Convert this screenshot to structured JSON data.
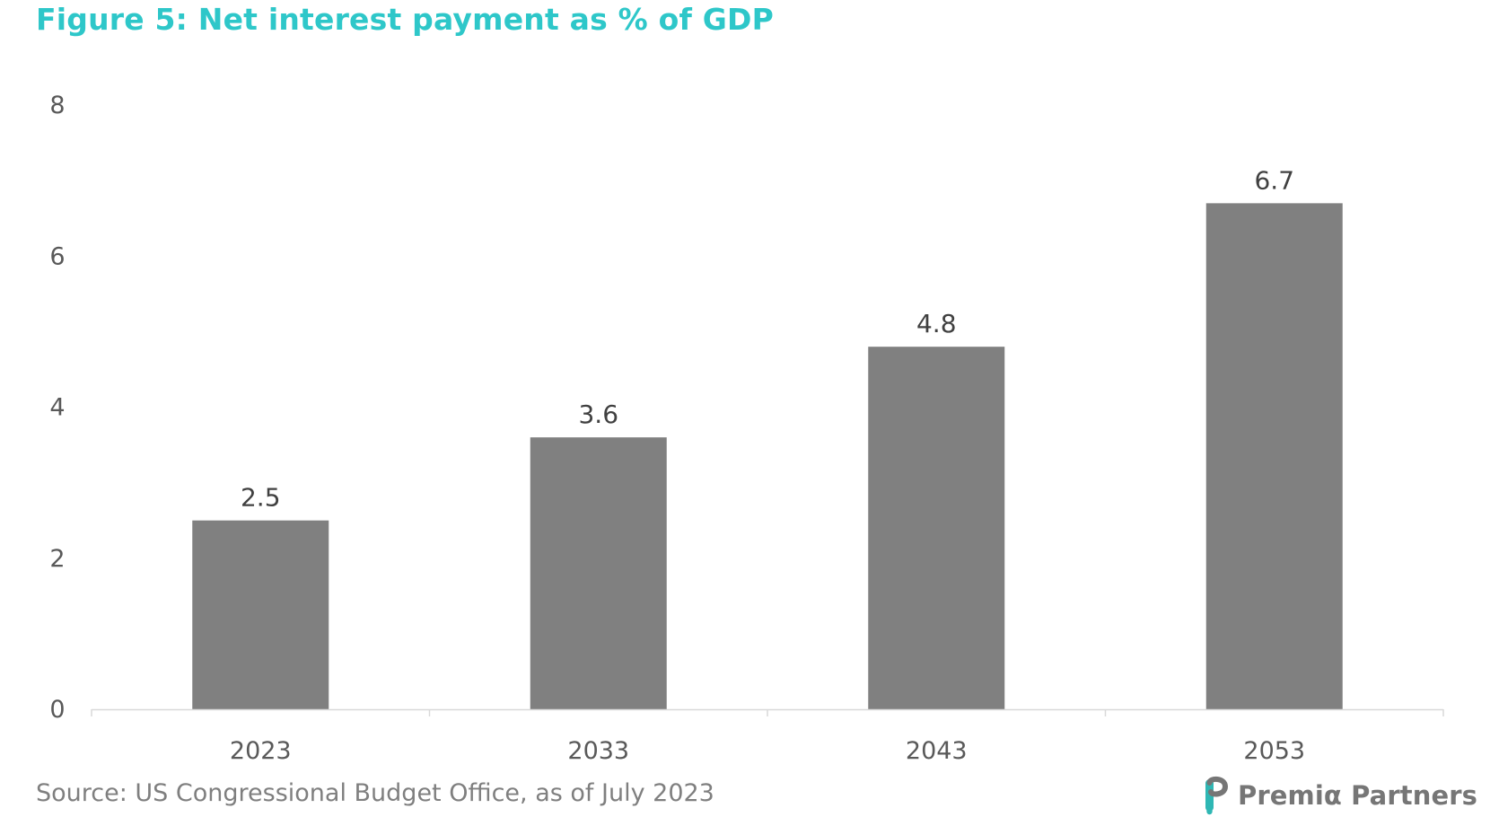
{
  "figure": {
    "title": "Figure 5: Net interest payment as % of GDP",
    "source": "Source: US Congressional Budget Office, as of July 2023"
  },
  "branding": {
    "logo_text": "Premiα Partners",
    "logo_icon": "premia-partners-logo-icon"
  },
  "colors": {
    "title": "#2ec7c9",
    "bar": "#808080",
    "axis": "#d9d9d9",
    "tick_label": "#595959",
    "data_label": "#404040",
    "source": "#7f7f7f",
    "logo_teal": "#2fb7b4",
    "logo_text": "#767676"
  },
  "chart_data": {
    "type": "bar",
    "title": "Figure 5: Net interest payment as % of GDP",
    "xlabel": "",
    "ylabel": "",
    "categories": [
      "2023",
      "2033",
      "2043",
      "2053"
    ],
    "values": [
      2.5,
      3.6,
      4.8,
      6.7
    ],
    "data_labels": [
      "2.5",
      "3.6",
      "4.8",
      "6.7"
    ],
    "ylim": [
      0,
      8
    ],
    "yticks": [
      0,
      2,
      4,
      6,
      8
    ],
    "grid": false,
    "legend": "none"
  }
}
